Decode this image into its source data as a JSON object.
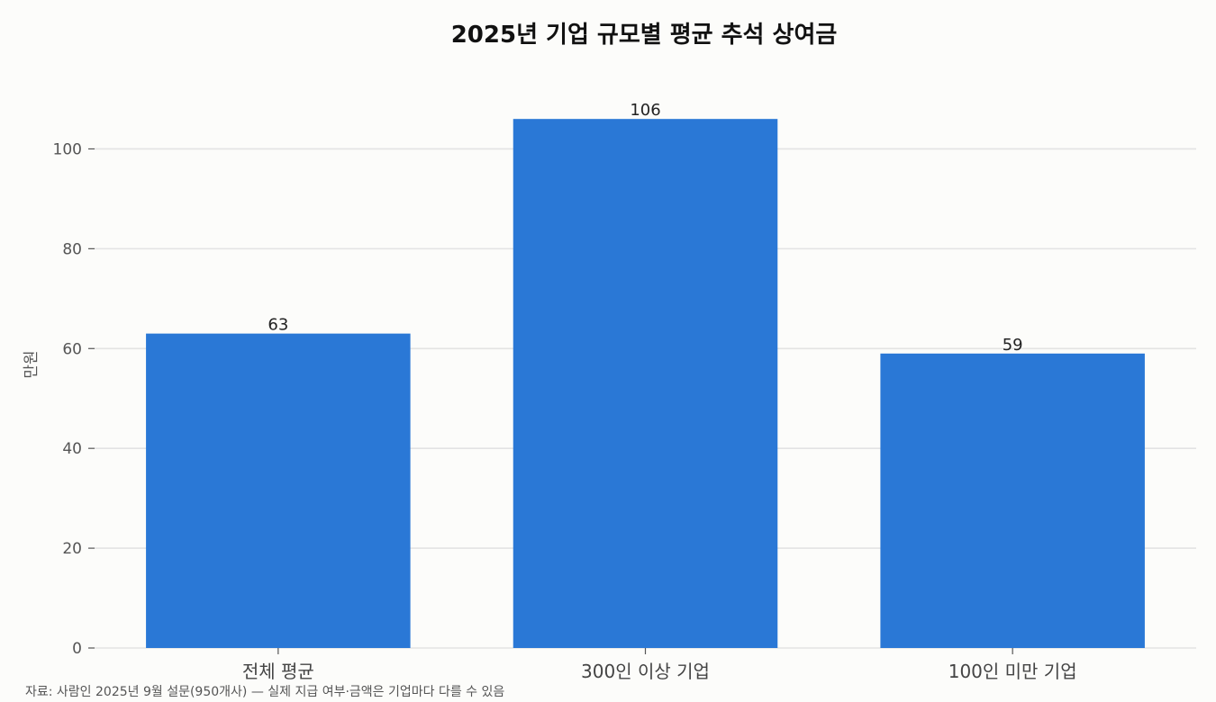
{
  "chart_data": {
    "type": "bar",
    "title": "2025년 기업 규모별 평균 추석 상여금",
    "ylabel": "만원",
    "xlabel": "",
    "categories": [
      "전체 평균",
      "300인 이상 기업",
      "100인 미만 기업"
    ],
    "values": [
      63,
      106,
      59
    ],
    "value_labels": [
      "63",
      "106",
      "59"
    ],
    "ylim": [
      0,
      110
    ],
    "yticks": [
      0,
      20,
      40,
      60,
      80,
      100
    ],
    "grid": true,
    "bar_color": "#2a78d6",
    "source": "자료: 사람인 2025년 9월 설문(950개사) — 실제 지급 여부·금액은 기업마다 다를 수 있음"
  }
}
